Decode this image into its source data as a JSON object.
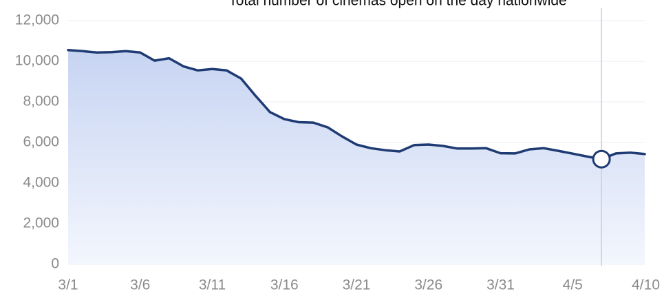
{
  "chart_data": {
    "type": "area",
    "title": "Total number of cinemas open on the day nationwide",
    "xlabel": "",
    "ylabel": "",
    "x": [
      "3/1",
      "3/2",
      "3/3",
      "3/4",
      "3/5",
      "3/6",
      "3/7",
      "3/8",
      "3/9",
      "3/10",
      "3/11",
      "3/12",
      "3/13",
      "3/14",
      "3/15",
      "3/16",
      "3/17",
      "3/18",
      "3/19",
      "3/20",
      "3/21",
      "3/22",
      "3/23",
      "3/24",
      "3/25",
      "3/26",
      "3/27",
      "3/28",
      "3/29",
      "3/30",
      "3/31",
      "4/1",
      "4/2",
      "4/3",
      "4/4",
      "4/5",
      "4/6",
      "4/7",
      "4/8",
      "4/9",
      "4/10"
    ],
    "values": [
      10550,
      10500,
      10430,
      10450,
      10500,
      10430,
      10030,
      10150,
      9750,
      9550,
      9620,
      9550,
      9150,
      8300,
      7500,
      7150,
      7000,
      6980,
      6750,
      6300,
      5900,
      5720,
      5620,
      5560,
      5870,
      5900,
      5830,
      5700,
      5700,
      5720,
      5470,
      5460,
      5660,
      5720,
      5590,
      5450,
      5310,
      5180,
      5460,
      5500,
      5430
    ],
    "xticks": [
      "3/1",
      "3/6",
      "3/11",
      "3/16",
      "3/21",
      "3/26",
      "3/31",
      "4/5",
      "4/10"
    ],
    "yticks": [
      "0",
      "2,000",
      "4,000",
      "6,000",
      "8,000",
      "10,000",
      "12,000"
    ],
    "ylim": [
      0,
      12000
    ],
    "grid": true,
    "highlight": {
      "x": "4/7",
      "value": 5180
    },
    "colors": {
      "line": "#1f3b73",
      "fill_top": "#c7d4f2",
      "fill_bottom": "#f3f6fd",
      "grid": "#e9edf5",
      "tick_text": "#8a8a8a",
      "marker_fill": "#ffffff",
      "marker_stroke": "#1f3b73",
      "crosshair": "#c9cfdb"
    }
  }
}
